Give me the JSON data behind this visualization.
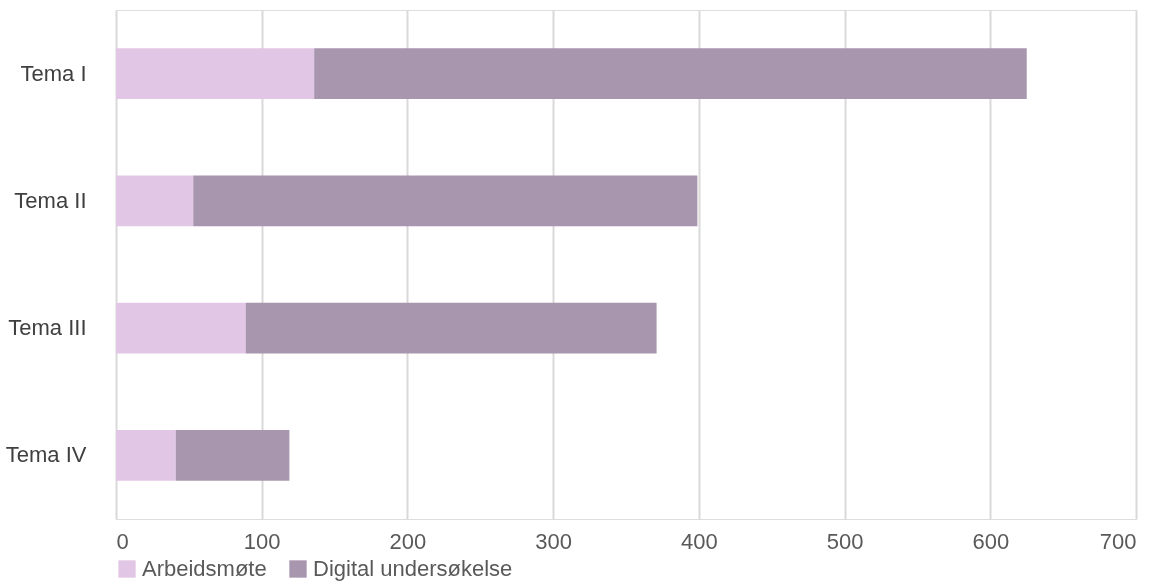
{
  "chart_data": {
    "type": "bar",
    "orientation": "horizontal",
    "stacked": true,
    "categories": [
      "Tema I",
      "Tema II",
      "Tema III",
      "Tema IV"
    ],
    "series": [
      {
        "name": "Arbeidsmøte",
        "color": "#e2c6e6",
        "values": [
          136,
          53,
          89,
          41
        ]
      },
      {
        "name": "Digital undersøkelse",
        "color": "#a895ae",
        "values": [
          489,
          346,
          282,
          78
        ]
      }
    ],
    "xlim": [
      0,
      700
    ],
    "xticks": [
      0,
      100,
      200,
      300,
      400,
      500,
      600,
      700
    ],
    "grid": "x",
    "legend": "bottom"
  }
}
